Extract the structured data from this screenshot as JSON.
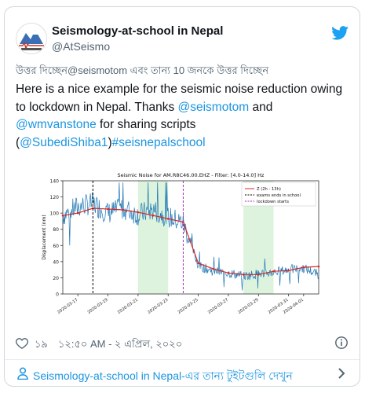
{
  "tweet": {
    "author_name": "Seismology-at-school in Nepal",
    "author_handle": "@AtSeismo",
    "reply_context": "উত্তর দিচ্ছেন@seismotom এবং তান্য 10 জনকে উত্তর দিচ্ছেন",
    "body_part1": "Here is a nice example for the seismic noise reduction owing to lockdown in Nepal. Thanks ",
    "mention1": "@seismotom",
    "body_part2": " and ",
    "mention2": "@wmvanstone",
    "body_part3": " for sharing scripts (",
    "mention3": "@SubediShiba1",
    "body_part4": ")",
    "hashtag": "#seisnepalschool",
    "likes": "১৯",
    "timestamp": "১২:৫০ AM - ২ এপ্রিল, ২০২০",
    "footer_link": "Seismology-at-school in Nepal-এর তান্য টুইটগুলি দেখুন"
  },
  "colors": {
    "link": "#1b95e0",
    "twitter_blue": "#1da1f2",
    "series": "#1f77b4",
    "median": "#d62728",
    "exams_line": "#000000",
    "lockdown_line": "#9b2fae",
    "weekend_band": "#d5f0d5"
  },
  "chart_data": {
    "type": "line",
    "title": "Seismic Noise for AM.R8C46.00.EHZ - Filter: [4.0-14.0] Hz",
    "ylabel": "Displacement (nm)",
    "xlabel": "",
    "ylim": [
      0,
      140
    ],
    "yticks": [
      0,
      20,
      40,
      60,
      80,
      100,
      120,
      140
    ],
    "xticks": [
      "2020-03-17",
      "2020-03-19",
      "2020-03-21",
      "2020-03-23",
      "2020-03-25",
      "2020-03-27",
      "2020-03-29",
      "2020-03-31",
      "2020-04-01"
    ],
    "x_start": "2020-03-16",
    "x_end": "2020-04-02",
    "legend": [
      {
        "name": "Z (2h - 13h)",
        "style": "solid",
        "color": "#d62728"
      },
      {
        "name": "exams ends in school",
        "style": "dashed",
        "color": "#000000"
      },
      {
        "name": "lockdown starts",
        "style": "dashed",
        "color": "#9b2fae"
      }
    ],
    "legend_position": "top-right",
    "events": [
      {
        "name": "exams ends in school",
        "date": "2020-03-18"
      },
      {
        "name": "lockdown starts",
        "date": "2020-03-24"
      }
    ],
    "median_series": {
      "name": "Z (2h - 13h)",
      "points": [
        [
          "2020-03-16",
          97
        ],
        [
          "2020-03-17",
          100
        ],
        [
          "2020-03-18",
          106
        ],
        [
          "2020-03-19",
          105
        ],
        [
          "2020-03-20",
          104
        ],
        [
          "2020-03-21",
          101
        ],
        [
          "2020-03-22",
          97
        ],
        [
          "2020-03-23",
          93
        ],
        [
          "2020-03-24",
          89
        ],
        [
          "2020-03-25",
          38
        ],
        [
          "2020-03-26",
          31
        ],
        [
          "2020-03-27",
          26
        ],
        [
          "2020-03-28",
          24
        ],
        [
          "2020-03-29",
          24
        ],
        [
          "2020-03-30",
          28
        ],
        [
          "2020-03-31",
          29
        ],
        [
          "2020-04-01",
          33
        ],
        [
          "2020-04-02",
          34
        ]
      ]
    },
    "raw_series": {
      "name": "Displacement",
      "points": [
        [
          "2020-03-16",
          97
        ],
        [
          "2020-03-17",
          108
        ],
        [
          "2020-03-18",
          112
        ],
        [
          "2020-03-19",
          100
        ],
        [
          "2020-03-20",
          106
        ],
        [
          "2020-03-21",
          98
        ],
        [
          "2020-03-22",
          104
        ],
        [
          "2020-03-23",
          95
        ],
        [
          "2020-03-24",
          88
        ],
        [
          "2020-03-25",
          35
        ],
        [
          "2020-03-26",
          28
        ],
        [
          "2020-03-27",
          26
        ],
        [
          "2020-03-28",
          22
        ],
        [
          "2020-03-29",
          25
        ],
        [
          "2020-03-30",
          27
        ],
        [
          "2020-03-31",
          30
        ],
        [
          "2020-04-01",
          32
        ],
        [
          "2020-04-02",
          24
        ]
      ]
    }
  }
}
